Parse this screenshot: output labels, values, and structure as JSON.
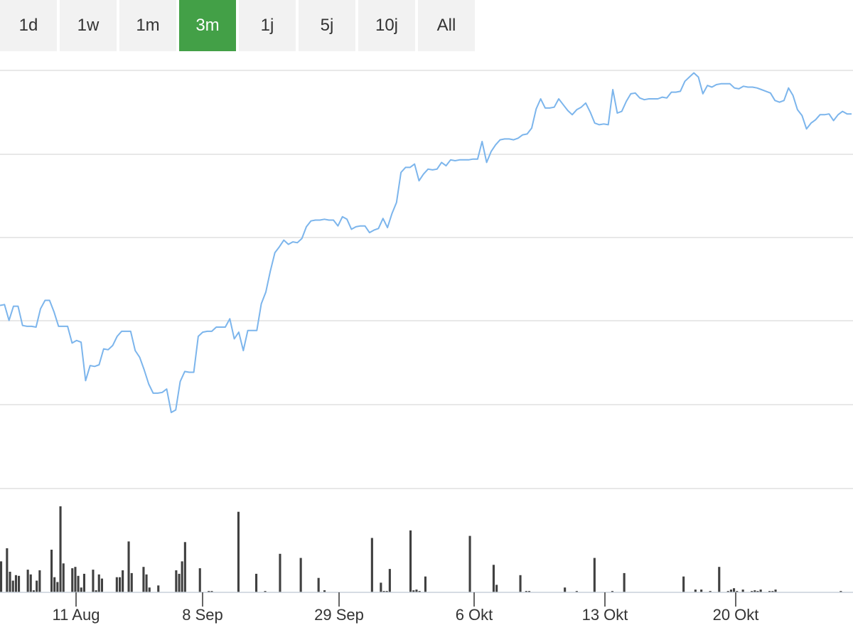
{
  "range_selector": {
    "buttons": [
      "1d",
      "1w",
      "1m",
      "3m",
      "1j",
      "5j",
      "10j",
      "All"
    ],
    "active": "3m"
  },
  "colors": {
    "line": "#7cb5ec",
    "volume": "#404040",
    "grid": "#e0e0e0",
    "active_button": "#43a047",
    "button": "#f2f2f2"
  },
  "chart_data": {
    "type": "line",
    "description_of_axes": "x: trading days (Aug–Oct); y: price (no labels shown)",
    "x_ticks": [
      "11 Aug",
      "8 Sep",
      "29 Sep",
      "6 Okt",
      "13 Okt",
      "20 Okt"
    ],
    "ylim": [
      0,
      5
    ],
    "price": [
      2.19,
      2.2,
      2.01,
      2.18,
      2.18,
      1.95,
      1.94,
      1.94,
      1.93,
      2.15,
      2.25,
      2.25,
      2.11,
      1.94,
      1.94,
      1.94,
      1.74,
      1.77,
      1.75,
      1.29,
      1.47,
      1.46,
      1.48,
      1.67,
      1.66,
      1.71,
      1.82,
      1.88,
      1.88,
      1.88,
      1.65,
      1.57,
      1.42,
      1.25,
      1.14,
      1.14,
      1.15,
      1.19,
      0.91,
      0.94,
      1.28,
      1.4,
      1.39,
      1.39,
      1.82,
      1.87,
      1.88,
      1.88,
      1.93,
      1.93,
      1.93,
      2.03,
      1.79,
      1.87,
      1.65,
      1.89,
      1.89,
      1.89,
      2.21,
      2.35,
      2.6,
      2.82,
      2.89,
      2.97,
      2.92,
      2.95,
      2.94,
      2.99,
      3.13,
      3.2,
      3.21,
      3.21,
      3.22,
      3.21,
      3.21,
      3.14,
      3.25,
      3.22,
      3.1,
      3.13,
      3.14,
      3.14,
      3.06,
      3.09,
      3.11,
      3.23,
      3.12,
      3.29,
      3.42,
      3.78,
      3.84,
      3.84,
      3.88,
      3.68,
      3.76,
      3.82,
      3.81,
      3.82,
      3.9,
      3.86,
      3.93,
      3.92,
      3.93,
      3.93,
      3.93,
      3.94,
      3.94,
      4.15,
      3.9,
      4.03,
      4.11,
      4.17,
      4.18,
      4.18,
      4.17,
      4.19,
      4.23,
      4.24,
      4.31,
      4.54,
      4.66,
      4.55,
      4.55,
      4.56,
      4.66,
      4.59,
      4.52,
      4.47,
      4.53,
      4.56,
      4.61,
      4.5,
      4.37,
      4.35,
      4.36,
      4.35,
      4.77,
      4.49,
      4.51,
      4.63,
      4.72,
      4.73,
      4.67,
      4.65,
      4.66,
      4.66,
      4.66,
      4.68,
      4.67,
      4.74,
      4.74,
      4.75,
      4.87,
      4.92,
      4.97,
      4.92,
      4.72,
      4.82,
      4.8,
      4.83,
      4.84,
      4.84,
      4.84,
      4.79,
      4.78,
      4.81,
      4.8,
      4.8,
      4.79,
      4.77,
      4.75,
      4.73,
      4.64,
      4.62,
      4.64,
      4.79,
      4.7,
      4.53,
      4.46,
      4.3,
      4.37,
      4.41,
      4.47,
      4.47,
      4.48,
      4.4,
      4.47,
      4.51,
      4.48,
      4.48
    ],
    "volume_max": 125,
    "volume": [
      45,
      0,
      64,
      30,
      17,
      25,
      24,
      0,
      0,
      33,
      26,
      3,
      17,
      32,
      0,
      0,
      0,
      62,
      22,
      15,
      125,
      42,
      0,
      0,
      35,
      37,
      24,
      7,
      27,
      0,
      0,
      33,
      3,
      26,
      20,
      0,
      0,
      0,
      0,
      22,
      22,
      32,
      0,
      74,
      28,
      0,
      0,
      0,
      37,
      26,
      7,
      0,
      0,
      10,
      0,
      0,
      0,
      0,
      0,
      32,
      27,
      45,
      73,
      0,
      0,
      0,
      0,
      35,
      0,
      0,
      2,
      2,
      0,
      0,
      0,
      0,
      0,
      0,
      0,
      0,
      117,
      0,
      0,
      0,
      0,
      0,
      27,
      0,
      0,
      2,
      0,
      0,
      0,
      0,
      56,
      0,
      0,
      0,
      0,
      0,
      0,
      50,
      0,
      0,
      0,
      0,
      0,
      21,
      0,
      3,
      0,
      0,
      0,
      0,
      0,
      0,
      0,
      0,
      0,
      0,
      0,
      0,
      0,
      0,
      0,
      79,
      0,
      0,
      14,
      2,
      2,
      34,
      0,
      0,
      0,
      0,
      0,
      0,
      90,
      3,
      4,
      2,
      0,
      23,
      0,
      0,
      0,
      0,
      0,
      0,
      0,
      0,
      0,
      0,
      0,
      0,
      0,
      0,
      82,
      0,
      0,
      0,
      0,
      0,
      0,
      0,
      40,
      11,
      0,
      0,
      0,
      0,
      0,
      0,
      0,
      25,
      0,
      2,
      2,
      0,
      0,
      0,
      0,
      0,
      0,
      0,
      0,
      0,
      0,
      0,
      7,
      0,
      0,
      0,
      2,
      0,
      0,
      0,
      0,
      0,
      50,
      0,
      0,
      0,
      0,
      0,
      2,
      0,
      0,
      0,
      28,
      0,
      0,
      0,
      0,
      0,
      0,
      0,
      0,
      0,
      0,
      0,
      0,
      0,
      0,
      0,
      0,
      0,
      0,
      0,
      23,
      0,
      0,
      0,
      4,
      0,
      4,
      0,
      0,
      2,
      0,
      0,
      37,
      0,
      0,
      2,
      4,
      6,
      2,
      0,
      4,
      0,
      0,
      2,
      3,
      2,
      4,
      0,
      0,
      2,
      2,
      4,
      0,
      0,
      0,
      0,
      0,
      0,
      0,
      0,
      0,
      0,
      0,
      0,
      0,
      0,
      0,
      0,
      0,
      0,
      0,
      0,
      0,
      2,
      0,
      0,
      0
    ]
  }
}
